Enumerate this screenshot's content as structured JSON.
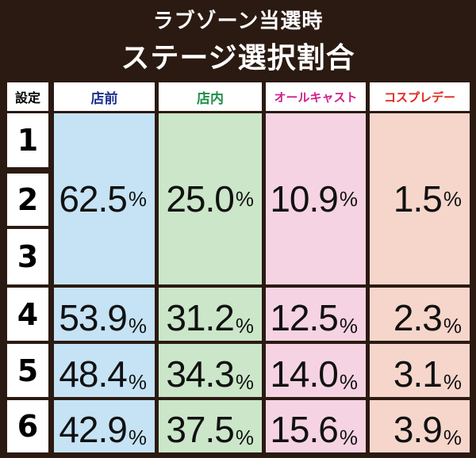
{
  "title": {
    "line1": "ラブゾーン当選時",
    "line2": "ステージ選択割合"
  },
  "table": {
    "header": {
      "setting": "設定",
      "columns": [
        "店前",
        "店内",
        "オールキャスト",
        "コスプレデー"
      ]
    },
    "colors": {
      "col_bg": [
        "#c5e3f5",
        "#cbe6c9",
        "#f6d3e2",
        "#f6d6cb"
      ],
      "header_text": [
        "#1f2f8c",
        "#1f8f4a",
        "#cf1f8a",
        "#e0281f"
      ]
    },
    "settings": [
      "1",
      "2",
      "3",
      "4",
      "5",
      "6"
    ],
    "percent_sign": "%",
    "groups": [
      {
        "settings": "1-3",
        "values": [
          "62.5",
          "25.0",
          "10.9",
          "1.5"
        ]
      },
      {
        "settings": "4",
        "values": [
          "53.9",
          "31.2",
          "12.5",
          "2.3"
        ]
      },
      {
        "settings": "5",
        "values": [
          "48.4",
          "34.3",
          "14.0",
          "3.1"
        ]
      },
      {
        "settings": "6",
        "values": [
          "42.9",
          "37.5",
          "15.6",
          "3.9"
        ]
      }
    ]
  }
}
